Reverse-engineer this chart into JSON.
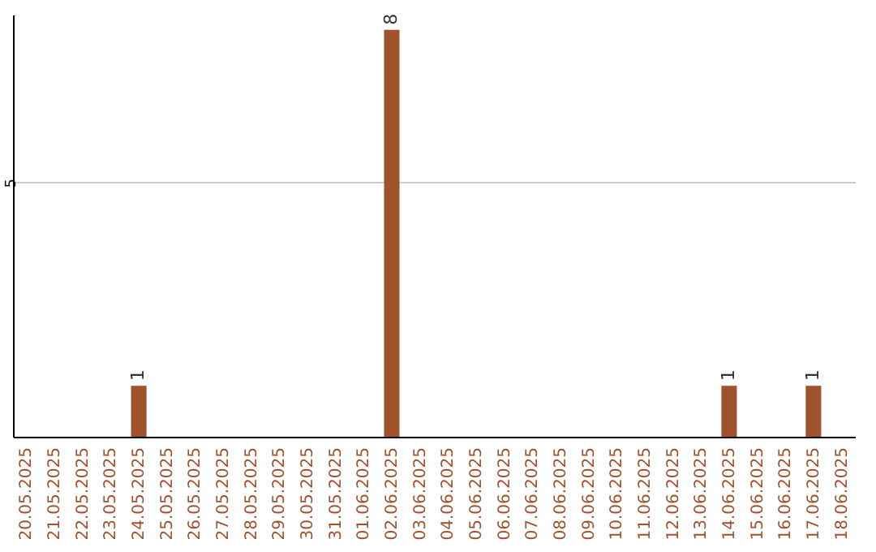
{
  "chart_data": {
    "type": "bar",
    "categories": [
      "20.05.2025",
      "21.05.2025",
      "22.05.2025",
      "23.05.2025",
      "24.05.2025",
      "25.05.2025",
      "26.05.2025",
      "27.05.2025",
      "28.05.2025",
      "29.05.2025",
      "30.05.2025",
      "31.05.2025",
      "01.06.2025",
      "02.06.2025",
      "03.06.2025",
      "04.06.2025",
      "05.06.2025",
      "06.06.2025",
      "07.06.2025",
      "08.06.2025",
      "09.06.2025",
      "10.06.2025",
      "11.06.2025",
      "12.06.2025",
      "13.06.2025",
      "14.06.2025",
      "15.06.2025",
      "16.06.2025",
      "17.06.2025",
      "18.06.2025"
    ],
    "values": [
      0,
      0,
      0,
      0,
      1,
      0,
      0,
      0,
      0,
      0,
      0,
      0,
      0,
      8,
      0,
      0,
      0,
      0,
      0,
      0,
      0,
      0,
      0,
      0,
      0,
      1,
      0,
      0,
      1,
      0
    ],
    "value_labels": [
      null,
      null,
      null,
      null,
      "1",
      null,
      null,
      null,
      null,
      null,
      null,
      null,
      null,
      "8",
      null,
      null,
      null,
      null,
      null,
      null,
      null,
      null,
      null,
      null,
      null,
      "1",
      null,
      null,
      "1",
      null
    ],
    "color": "#a0522d",
    "ylim": [
      0,
      8.3
    ],
    "yticks": [
      5
    ],
    "grid": "y"
  }
}
